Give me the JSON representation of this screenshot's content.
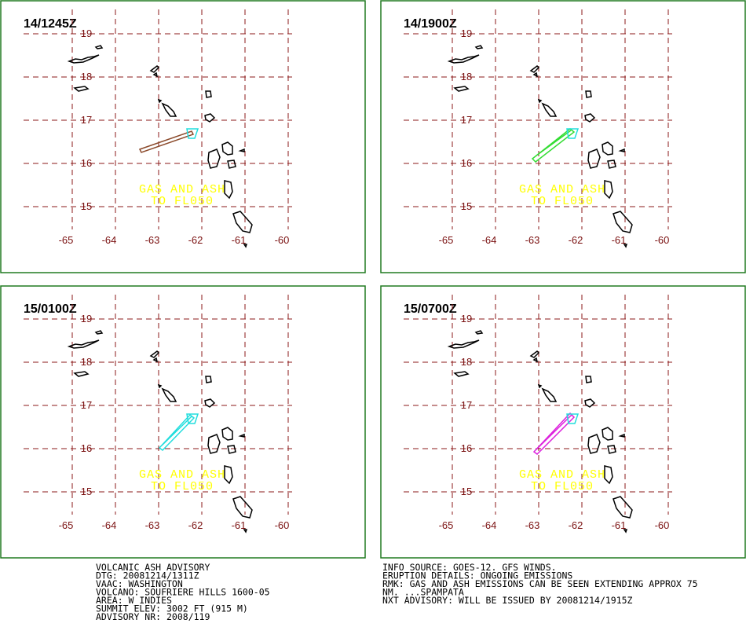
{
  "panels": [
    {
      "title": "14/1245Z"
    },
    {
      "title": "14/1900Z"
    },
    {
      "title": "15/0100Z"
    },
    {
      "title": "15/0700Z"
    }
  ],
  "map": {
    "lat_ticks": [
      19,
      18,
      17,
      16,
      15
    ],
    "lon_ticks": [
      -65,
      -64,
      -63,
      -62,
      -61,
      -60
    ],
    "annotation": [
      "GAS AND ASH",
      "TO FL050"
    ]
  },
  "advisory": {
    "left": [
      "VOLCANIC ASH ADVISORY",
      "DTG: 20081214/1311Z",
      "VAAC: WASHINGTON",
      "VOLCANO: SOUFRIERE HILLS 1600-05",
      "AREA: W_INDIES",
      "SUMMIT ELEV: 3002 FT (915 M)",
      "ADVISORY NR: 2008/119"
    ],
    "right": [
      "INFO SOURCE: GOES-12. GFS WINDS.",
      "ERUPTION DETAILS: ONGOING EMISSIONS",
      "RMK: GAS AND ASH EMISSIONS CAN BE SEEN EXTENDING APPROX 75",
      "NM. ...SPAMPATA",
      "NXT ADVISORY: WILL BE ISSUED BY 20081214/1915Z"
    ]
  }
}
